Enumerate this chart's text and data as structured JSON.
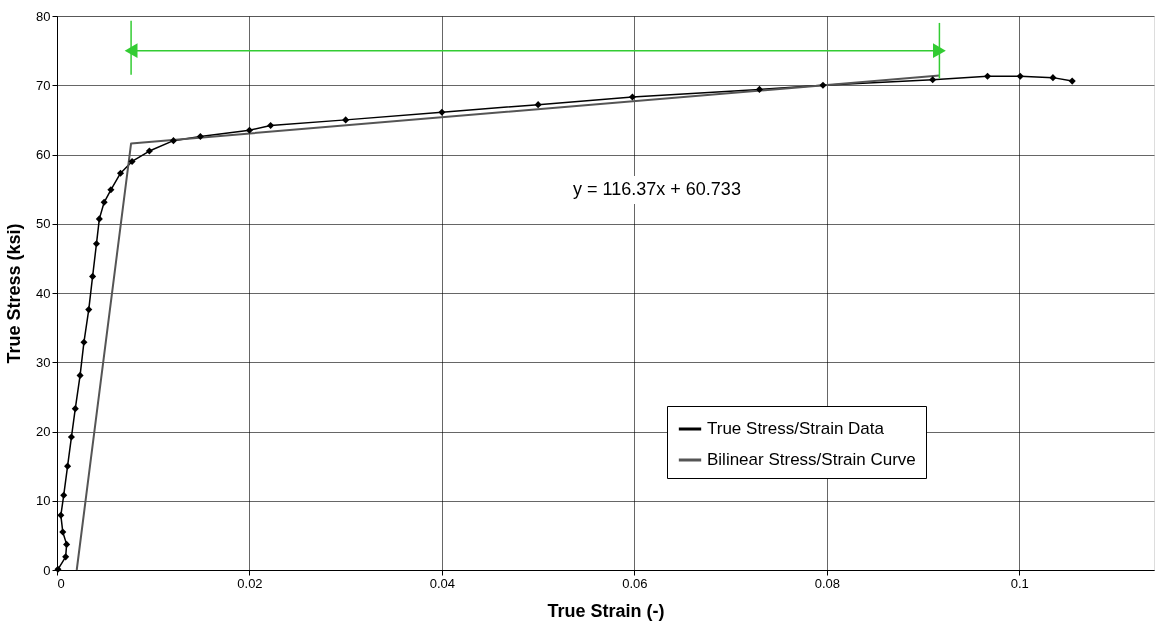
{
  "chart_data": {
    "type": "line",
    "xlabel": "True Strain (-)",
    "ylabel": "True Stress (ksi)",
    "xlim": [
      0,
      0.114
    ],
    "xticks": [
      0,
      0.02,
      0.04,
      0.06,
      0.08,
      0.1
    ],
    "ylim": [
      0,
      80
    ],
    "yticks": [
      0,
      10,
      20,
      30,
      40,
      50,
      60,
      70,
      80
    ],
    "grid": true,
    "legend": "right",
    "annotations": [
      "y = 116.37x + 60.733"
    ],
    "series": [
      {
        "name": "True Stress/Strain Data",
        "color": "#000000",
        "marker": "diamond",
        "x": [
          0.0001,
          0.0009,
          0.001,
          0.0006,
          0.0004,
          0.0007,
          0.0011,
          0.0015,
          0.0019,
          0.0024,
          0.0028,
          0.0033,
          0.0037,
          0.0041,
          0.0044,
          0.0049,
          0.0056,
          0.0066,
          0.0078,
          0.0096,
          0.0121,
          0.0149,
          0.02,
          0.0222,
          0.03,
          0.04,
          0.05,
          0.0598,
          0.073,
          0.0796,
          0.091,
          0.0967,
          0.1001,
          0.1035,
          0.1055
        ],
        "values": [
          0.1,
          1.9,
          3.7,
          5.5,
          7.9,
          10.8,
          15,
          19.2,
          23.3,
          28.1,
          32.9,
          37.6,
          42.4,
          47.1,
          50.7,
          53.1,
          54.9,
          57.3,
          59,
          60.5,
          62,
          62.6,
          63.5,
          64.2,
          65,
          66.1,
          67.2,
          68.3,
          69.4,
          70,
          70.8,
          71.3,
          71.3,
          71.1,
          70.6
        ]
      },
      {
        "name": "Bilinear Stress/Strain Curve",
        "color": "#555555",
        "marker": "none",
        "x": [
          0.00205,
          0.0077,
          0.0917
        ],
        "values": [
          0,
          61.6,
          71.4
        ]
      },
      {
        "type": "line",
        "color": "#33cc33",
        "marker": "triangle",
        "x": [
          0.0077,
          0.0917
        ],
        "values": [
          75,
          75
        ]
      },
      {
        "type": "line",
        "color": "#33cc33",
        "marker": "none",
        "x": [
          0.0077,
          0.0077
        ],
        "values": [
          71.5,
          79.3
        ]
      },
      {
        "type": "line",
        "color": "#33cc33",
        "marker": "none",
        "x": [
          0.0917,
          0.0917
        ],
        "values": [
          71,
          79
        ]
      }
    ]
  }
}
